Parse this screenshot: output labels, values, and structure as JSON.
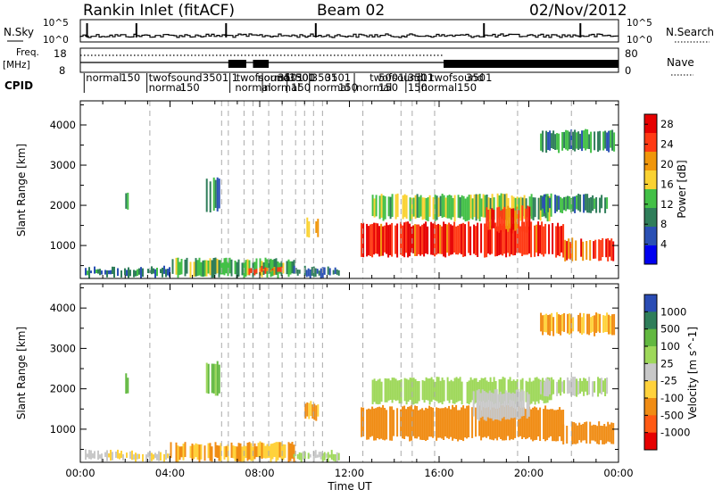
{
  "header": {
    "station": "Rankin Inlet (fitACF)",
    "beam": "Beam 02",
    "date": "02/Nov/2012"
  },
  "nsky_panel": {
    "left_label": "N.Sky",
    "right_label": "N.Search",
    "y_ticks": [
      "10^5",
      "10^0"
    ]
  },
  "freq_panel": {
    "left_label_line1": "Freq.",
    "left_label_line2": "[MHz]",
    "right_label": "Nave",
    "left_ticks": [
      "18",
      "8"
    ],
    "right_ticks": [
      "80",
      "0"
    ]
  },
  "cpid": {
    "label": "CPID",
    "row1": [
      {
        "t": 6.75,
        "text": "1"
      },
      {
        "t": 6.95,
        "text": "twofsound"
      },
      {
        "t": 7.9,
        "text": "normal"
      },
      {
        "t": 8.8,
        "text": "3501"
      },
      {
        "t": 9.6,
        "text": "300"
      },
      {
        "t": 12.9,
        "text": "twofsound"
      },
      {
        "t": 14.6,
        "text": "3501"
      },
      {
        "t": 15.6,
        "text": "twofsound"
      },
      {
        "t": 17.2,
        "text": "3501"
      }
    ],
    "row2": [
      {
        "t": 0.25,
        "text": "normal"
      },
      {
        "t": 1.8,
        "text": "150"
      },
      {
        "t": 3.05,
        "text": "twofsound"
      },
      {
        "t": 5.45,
        "text": "3501"
      },
      {
        "t": 9.3,
        "text": "3501"
      },
      {
        "t": 10.3,
        "text": "3501"
      },
      {
        "t": 10.9,
        "text": "3501"
      },
      {
        "t": 13.3,
        "text": "5001"
      },
      {
        "t": 15.2,
        "text": "1"
      }
    ],
    "row3": [
      {
        "t": 3.05,
        "text": "normal"
      },
      {
        "t": 4.45,
        "text": "150"
      },
      {
        "t": 6.9,
        "text": "normal"
      },
      {
        "t": 8.2,
        "text": "normal"
      },
      {
        "t": 9.4,
        "text": "150"
      },
      {
        "t": 10.4,
        "text": "normal"
      },
      {
        "t": 11.5,
        "text": "150"
      },
      {
        "t": 12.3,
        "text": "normal"
      },
      {
        "t": 13.3,
        "text": "150"
      },
      {
        "t": 14.6,
        "text": "150"
      },
      {
        "t": 15.2,
        "text": "normal"
      },
      {
        "t": 16.8,
        "text": "150"
      }
    ]
  },
  "chart_data": [
    {
      "type": "heatmap",
      "quantity": "Power",
      "ylabel": "Slant Range [km]",
      "x_range_hours": [
        0,
        24
      ],
      "ylim": [
        180,
        4600
      ],
      "yticks": [
        "1000",
        "2000",
        "3000",
        "4000"
      ],
      "colorbar_label": "Power [dB]",
      "colorbar_ticks": [
        "4",
        "8",
        "12",
        "16",
        "20",
        "24",
        "28"
      ],
      "colorbar_range": [
        0,
        30
      ],
      "colors": [
        "#0000f0",
        "#2a50b4",
        "#2f7e5a",
        "#43c047",
        "#fad232",
        "#f0960a",
        "#ff3a14",
        "#e60000"
      ],
      "blocks": [
        {
          "t0": 0.2,
          "t1": 4.0,
          "r0": 180,
          "r1": 500,
          "v": 8
        },
        {
          "t0": 4.0,
          "t1": 9.5,
          "r0": 180,
          "r1": 700,
          "v": 12
        },
        {
          "t0": 7.5,
          "t1": 9.0,
          "r0": 250,
          "r1": 500,
          "v": 22
        },
        {
          "t0": 9.5,
          "t1": 11.5,
          "r0": 180,
          "r1": 500,
          "v": 8
        },
        {
          "t0": 10.0,
          "t1": 10.6,
          "r0": 1200,
          "r1": 1700,
          "v": 20
        },
        {
          "t0": 12.5,
          "t1": 21.5,
          "r0": 700,
          "r1": 1600,
          "v": 26
        },
        {
          "t0": 21.5,
          "t1": 23.8,
          "r0": 600,
          "r1": 1200,
          "v": 24
        },
        {
          "t0": 13.0,
          "t1": 21.0,
          "r0": 1600,
          "r1": 2300,
          "v": 14
        },
        {
          "t0": 18.0,
          "t1": 20.0,
          "r0": 1300,
          "r1": 2000,
          "v": 24
        },
        {
          "t0": 20.5,
          "t1": 23.8,
          "r0": 3300,
          "r1": 3900,
          "v": 10
        },
        {
          "t0": 20.5,
          "t1": 23.5,
          "r0": 1800,
          "r1": 2300,
          "v": 10
        },
        {
          "t0": 2.0,
          "t1": 2.1,
          "r0": 1800,
          "r1": 2400,
          "v": 8
        },
        {
          "t0": 5.6,
          "t1": 6.2,
          "r0": 1800,
          "r1": 2700,
          "v": 10
        }
      ],
      "dashed_lines": [
        3.1,
        6.3,
        6.6,
        7.3,
        7.7,
        8.4,
        9.0,
        9.6,
        10.0,
        10.4,
        10.8,
        12.6,
        14.3,
        14.8,
        15.8,
        19.5,
        21.9
      ]
    },
    {
      "type": "heatmap",
      "quantity": "Velocity",
      "xlabel": "Time UT",
      "ylabel": "Slant Range [km]",
      "x_range_hours": [
        0,
        24
      ],
      "x_ticks": [
        "00:00",
        "04:00",
        "08:00",
        "12:00",
        "16:00",
        "20:00",
        "00:00"
      ],
      "ylim": [
        180,
        4600
      ],
      "yticks": [
        "1000",
        "2000",
        "3000",
        "4000"
      ],
      "colorbar_label": "Velocity [m s^-1]",
      "colorbar_ticks": [
        "1000",
        "500",
        "100",
        "25",
        "-25",
        "-100",
        "-500",
        "-1000"
      ],
      "colors": [
        "#2a4cb4",
        "#2f7e5a",
        "#62b840",
        "#9ed85a",
        "#c8c8c8",
        "#ffd23c",
        "#f08c14",
        "#ff5a14",
        "#e60000"
      ],
      "blocks": [
        {
          "t0": 0.2,
          "t1": 4.0,
          "r0": 180,
          "r1": 500,
          "v": -25
        },
        {
          "t0": 4.0,
          "t1": 9.5,
          "r0": 180,
          "r1": 700,
          "v": -100
        },
        {
          "t0": 9.5,
          "t1": 11.5,
          "r0": 180,
          "r1": 500,
          "v": 25
        },
        {
          "t0": 10.0,
          "t1": 10.6,
          "r0": 1200,
          "r1": 1700,
          "v": -100
        },
        {
          "t0": 12.5,
          "t1": 21.5,
          "r0": 700,
          "r1": 1600,
          "v": -300
        },
        {
          "t0": 21.5,
          "t1": 23.8,
          "r0": 600,
          "r1": 1200,
          "v": -200
        },
        {
          "t0": 13.0,
          "t1": 21.0,
          "r0": 1600,
          "r1": 2300,
          "v": 50
        },
        {
          "t0": 17.5,
          "t1": 20.0,
          "r0": 1200,
          "r1": 2000,
          "v": 0
        },
        {
          "t0": 20.5,
          "t1": 23.8,
          "r0": 3300,
          "r1": 3900,
          "v": -100
        },
        {
          "t0": 20.5,
          "t1": 23.5,
          "r0": 1800,
          "r1": 2300,
          "v": 25
        },
        {
          "t0": 2.0,
          "t1": 2.1,
          "r0": 1800,
          "r1": 2400,
          "v": 300
        },
        {
          "t0": 5.6,
          "t1": 6.2,
          "r0": 1800,
          "r1": 2700,
          "v": 100
        }
      ],
      "dashed_lines": [
        3.1,
        6.3,
        6.6,
        7.3,
        7.7,
        8.4,
        9.0,
        9.6,
        10.0,
        10.4,
        10.8,
        12.6,
        14.3,
        14.8,
        15.8,
        19.5,
        21.9
      ]
    }
  ]
}
